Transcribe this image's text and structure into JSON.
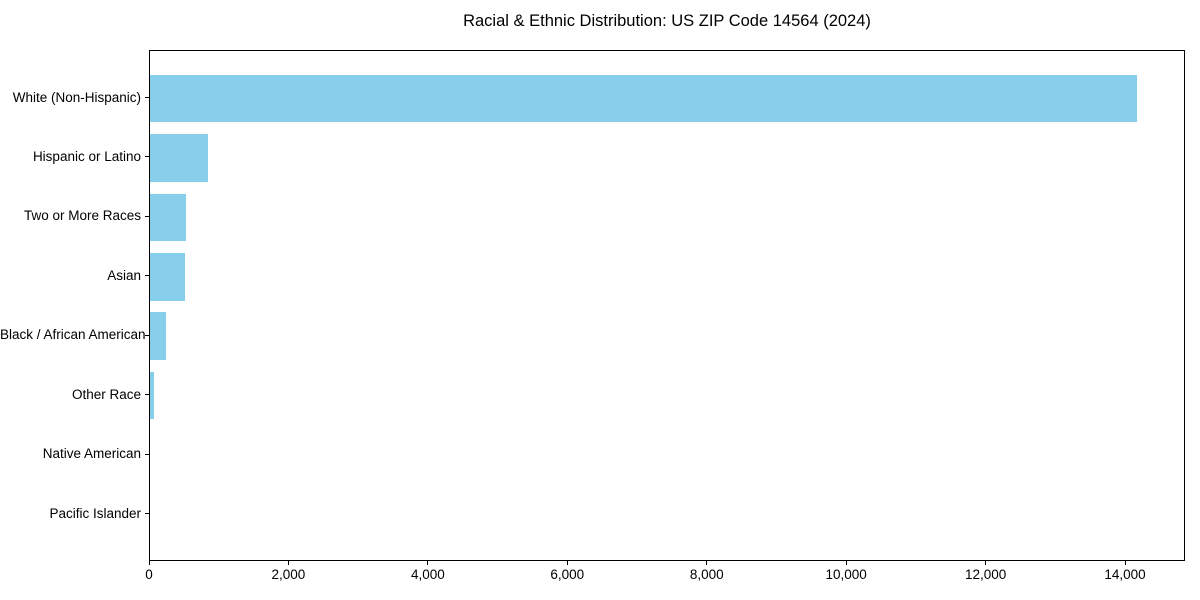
{
  "chart_data": {
    "type": "bar",
    "orientation": "horizontal",
    "title": "Racial & Ethnic Distribution: US ZIP Code 14564 (2024)",
    "categories": [
      "White (Non-Hispanic)",
      "Hispanic or Latino",
      "Two or More Races",
      "Asian",
      "Black / African American",
      "Other Race",
      "Native American",
      "Pacific Islander"
    ],
    "values": [
      14150,
      830,
      520,
      505,
      230,
      55,
      0,
      0
    ],
    "xlabel": "",
    "ylabel": "",
    "xlim": [
      0,
      14860
    ],
    "xticks": [
      0,
      2000,
      4000,
      6000,
      8000,
      10000,
      12000,
      14000
    ],
    "xtick_labels": [
      "0",
      "2,000",
      "4,000",
      "6,000",
      "8,000",
      "10,000",
      "12,000",
      "14,000"
    ],
    "grid": false,
    "legend": null,
    "bar_color": "#87CEEB",
    "spine_color": "#000000",
    "text_color": "#000000",
    "background": "#ffffff"
  }
}
